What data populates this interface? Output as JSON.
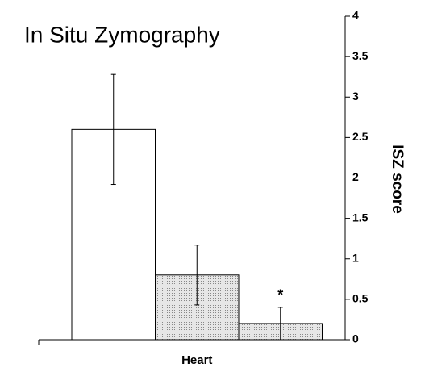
{
  "chart_data": {
    "type": "bar",
    "title": "In Situ Zymography",
    "ylabel": "ISZ score",
    "categories": [
      "Heart"
    ],
    "series": [
      {
        "color": "#ffffff",
        "values": [
          2.6
        ],
        "errors": [
          0.68
        ]
      },
      {
        "color": "#d4d4d4",
        "values": [
          0.8
        ],
        "errors": [
          0.37
        ]
      },
      {
        "color": "#d4d4d4",
        "values": [
          0.2
        ],
        "errors": [
          0.2
        ]
      }
    ],
    "annotation": "*",
    "ylim": [
      0,
      4
    ],
    "yticks": [
      0,
      0.5,
      1,
      1.5,
      2,
      2.5,
      3,
      3.5,
      4
    ],
    "y_axis_side": "right",
    "grid": false
  }
}
